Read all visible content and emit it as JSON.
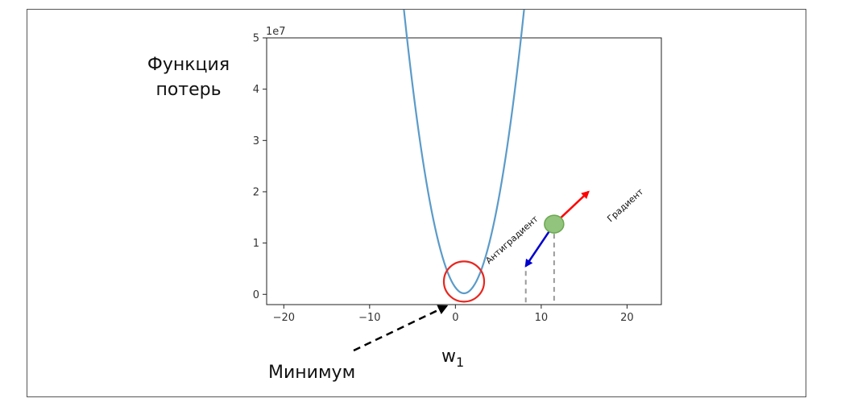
{
  "chart_data": {
    "type": "line",
    "title": "",
    "ylabel_line1": "Функция",
    "ylabel_line2": "потерь",
    "xlabel": "w",
    "xlabel_subscript": "1",
    "offset_text": "1e7",
    "xlim": [
      -22,
      24
    ],
    "ylim": [
      -0.2,
      5.0
    ],
    "x_ticks": [
      -20,
      -10,
      0,
      10,
      20
    ],
    "x_tick_labels": [
      "−20",
      "−10",
      "0",
      "10",
      "20"
    ],
    "y_ticks": [
      0,
      1,
      2,
      3,
      4,
      5
    ],
    "y_tick_labels": [
      "0",
      "1",
      "2",
      "3",
      "4",
      "5"
    ],
    "series": [
      {
        "color": "#5b9bc9",
        "curve": {
          "form": "quadratic",
          "vertex_x": 1,
          "vertex_y": 0.02,
          "coefficient": 0.1128
        },
        "x_range": [
          -20,
          22
        ]
      }
    ],
    "annotations": {
      "minimum_label": "Минимум",
      "minimum_x": 1,
      "minimum_y": 0.25,
      "gradient_label": "Градиент",
      "antigradient_label": "Антиградиент",
      "point_x": 11.5,
      "point_y": 1.37,
      "antigradient_end_x": 8.2,
      "antigradient_end_y": 0.55,
      "gradient_end_x": 15.5,
      "gradient_end_y": 2.0,
      "point_color": "#92c47d",
      "gradient_color": "#ff0000",
      "antigradient_color": "#0000cc",
      "circle_color": "#e8261f"
    }
  }
}
